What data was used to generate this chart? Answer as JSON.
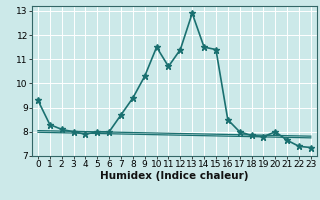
{
  "xlabel": "Humidex (Indice chaleur)",
  "ylabel": "",
  "xlim": [
    -0.5,
    23.5
  ],
  "ylim": [
    7,
    13.2
  ],
  "yticks": [
    7,
    8,
    9,
    10,
    11,
    12,
    13
  ],
  "xticks": [
    0,
    1,
    2,
    3,
    4,
    5,
    6,
    7,
    8,
    9,
    10,
    11,
    12,
    13,
    14,
    15,
    16,
    17,
    18,
    19,
    20,
    21,
    22,
    23
  ],
  "background_color": "#cce9e9",
  "grid_color": "#ffffff",
  "line_color": "#1a7070",
  "lines": [
    {
      "x": [
        0,
        1,
        2,
        3,
        4,
        5,
        6,
        7,
        8,
        9,
        10,
        11,
        12,
        13,
        14,
        15,
        16,
        17,
        18,
        19,
        20,
        21,
        22,
        23
      ],
      "y": [
        9.3,
        8.3,
        8.1,
        8.0,
        7.9,
        8.0,
        8.0,
        8.7,
        9.4,
        10.3,
        11.5,
        10.7,
        11.4,
        12.9,
        11.5,
        11.4,
        8.5,
        8.0,
        7.85,
        7.8,
        8.0,
        7.65,
        7.4,
        7.35
      ],
      "marker": "*",
      "linewidth": 1.2,
      "markersize": 4.5
    },
    {
      "x": [
        0,
        1,
        2,
        3,
        4,
        5,
        6,
        7,
        8,
        9,
        10,
        11,
        12,
        13,
        14,
        15,
        16,
        17,
        18,
        19,
        20,
        21,
        22,
        23
      ],
      "y": [
        8.05,
        8.04,
        8.03,
        8.02,
        8.01,
        8.0,
        7.99,
        7.98,
        7.97,
        7.96,
        7.95,
        7.94,
        7.93,
        7.92,
        7.91,
        7.9,
        7.89,
        7.88,
        7.87,
        7.86,
        7.85,
        7.84,
        7.83,
        7.82
      ],
      "marker": null,
      "linewidth": 0.9,
      "markersize": 0
    },
    {
      "x": [
        0,
        1,
        2,
        3,
        4,
        5,
        6,
        7,
        8,
        9,
        10,
        11,
        12,
        13,
        14,
        15,
        16,
        17,
        18,
        19,
        20,
        21,
        22,
        23
      ],
      "y": [
        7.98,
        7.97,
        7.96,
        7.95,
        7.94,
        7.93,
        7.92,
        7.91,
        7.9,
        7.89,
        7.88,
        7.87,
        7.86,
        7.85,
        7.84,
        7.83,
        7.82,
        7.81,
        7.8,
        7.79,
        7.78,
        7.77,
        7.76,
        7.75
      ],
      "marker": null,
      "linewidth": 0.9,
      "markersize": 0
    }
  ],
  "tick_fontsize": 6.5,
  "xlabel_fontsize": 7.5
}
